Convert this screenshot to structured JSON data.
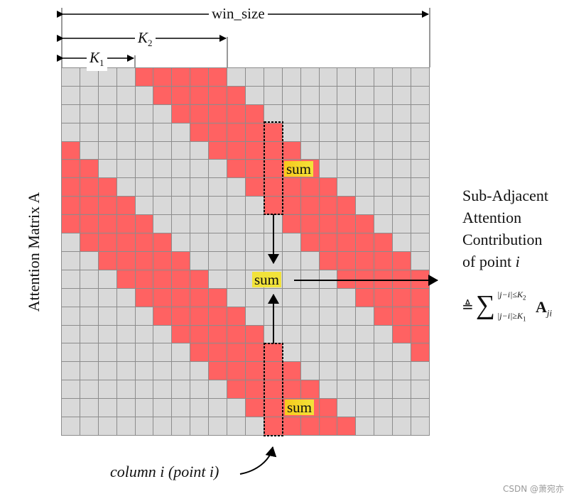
{
  "diagram": {
    "dimensions": {
      "win_size_label": "win_size",
      "k2_label": "K",
      "k2_sub": "2",
      "k1_label": "K",
      "k1_sub": "1"
    },
    "matrix": {
      "label": "Attention Matrix A",
      "size": 20,
      "k1": 4,
      "k2": 8,
      "highlight_column": 11,
      "colors": {
        "active": "#ff6262",
        "inactive": "#d9d9d9",
        "gridline": "#8c8c8c",
        "sum_highlight": "#f2e33a"
      }
    },
    "sum_labels": {
      "top": "sum",
      "center": "sum",
      "bottom": "sum"
    },
    "description": {
      "line1": "Sub-Adjacent",
      "line2": "Attention",
      "line3": "Contribution",
      "line4_prefix": "of point ",
      "line4_var": "i"
    },
    "formula": {
      "defeq": "≜",
      "sigma": "∑",
      "upper": "|j−i|≤K",
      "upper_sub": "2",
      "lower": "|j−i|≥K",
      "lower_sub": "1",
      "term": "A",
      "term_sub": "ji"
    },
    "caption": "column i (point i)",
    "watermark": "CSDN @萧宛亦"
  }
}
